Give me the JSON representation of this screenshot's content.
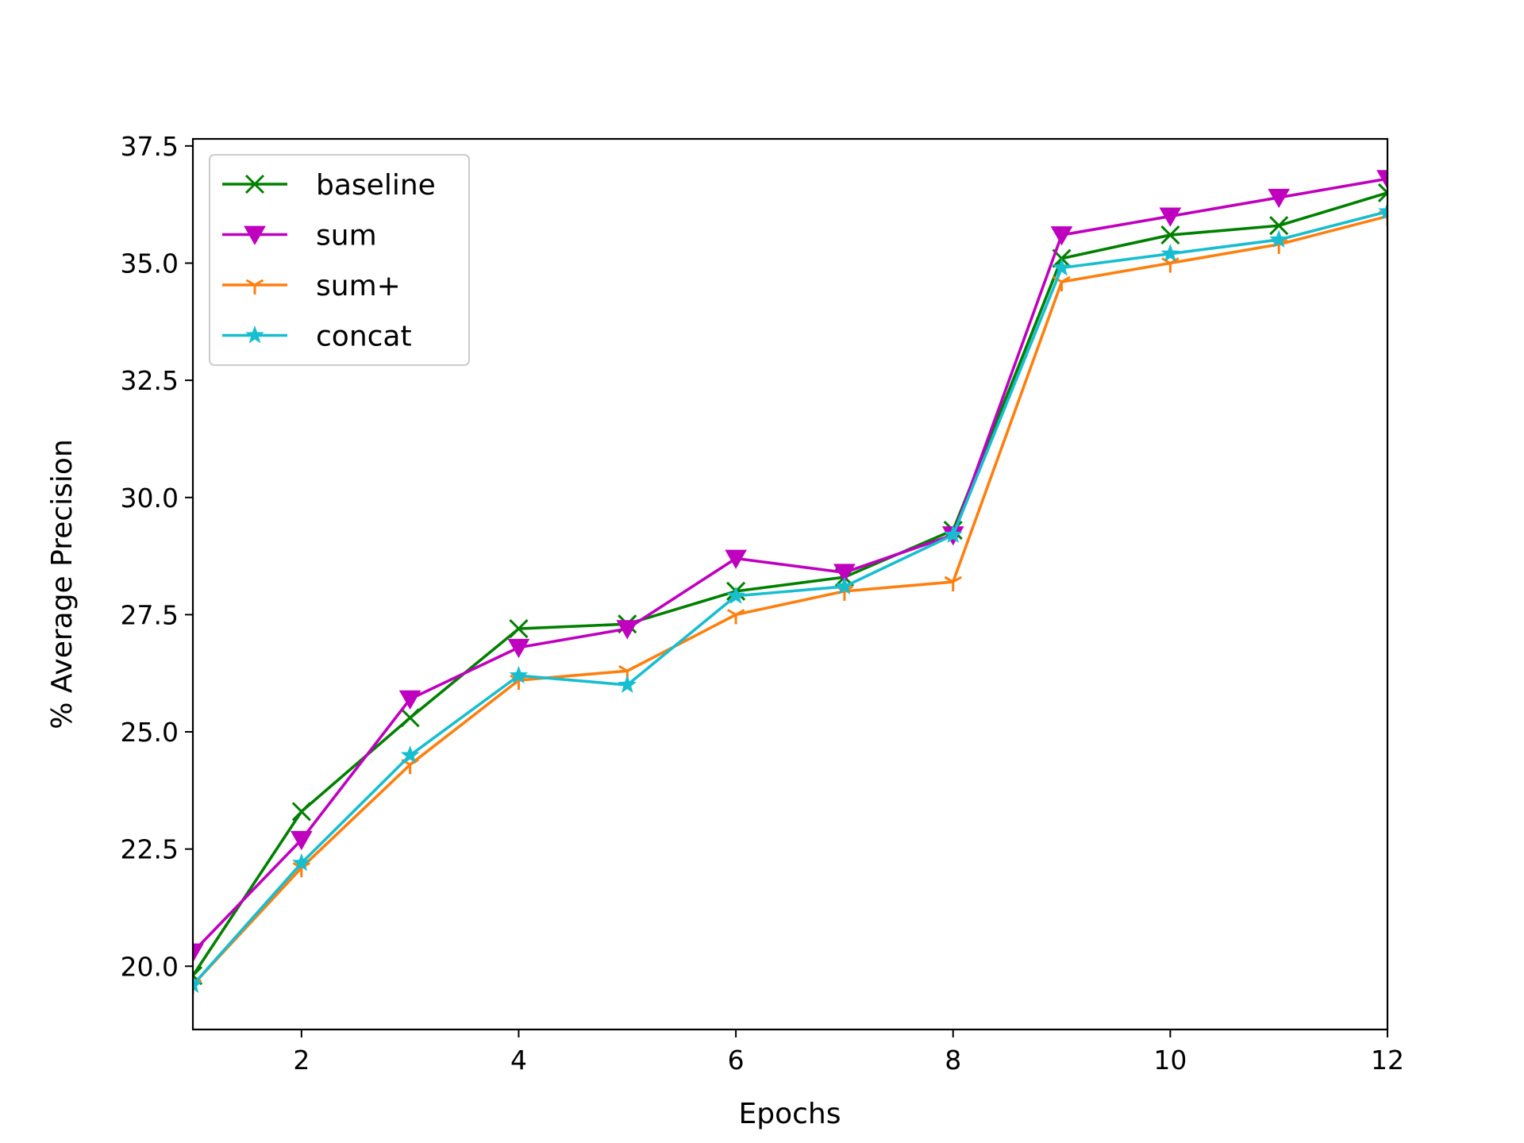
{
  "chart_data": {
    "type": "line",
    "title": "",
    "xlabel": "Epochs",
    "ylabel": "% Average Precision",
    "xlim": [
      1,
      12
    ],
    "ylim": [
      18.65,
      37.65
    ],
    "x_ticks": [
      2,
      4,
      6,
      8,
      10,
      12
    ],
    "x_tick_labels": [
      "2",
      "4",
      "6",
      "8",
      "10",
      "12"
    ],
    "y_ticks": [
      20.0,
      22.5,
      25.0,
      27.5,
      30.0,
      32.5,
      35.0,
      37.5
    ],
    "y_tick_labels": [
      "20.0",
      "22.5",
      "25.0",
      "27.5",
      "30.0",
      "32.5",
      "35.0",
      "37.5"
    ],
    "grid": false,
    "legend_position": "upper-left",
    "x": [
      1,
      2,
      3,
      4,
      5,
      6,
      7,
      8,
      9,
      10,
      11,
      12
    ],
    "series": [
      {
        "name": "baseline",
        "color": "#008000",
        "marker": "x",
        "values": [
          19.8,
          23.3,
          25.3,
          27.2,
          27.3,
          28.0,
          28.3,
          29.3,
          35.1,
          35.6,
          35.8,
          36.5
        ]
      },
      {
        "name": "sum",
        "color": "#bf00bf",
        "marker": "triangle-down",
        "values": [
          20.3,
          22.7,
          25.7,
          26.8,
          27.2,
          28.7,
          28.4,
          29.2,
          35.6,
          36.0,
          36.4,
          36.8
        ]
      },
      {
        "name": "sum+",
        "color": "#ff7f0e",
        "marker": "tri-down",
        "values": [
          19.6,
          22.1,
          24.3,
          26.1,
          26.3,
          27.5,
          28.0,
          28.2,
          34.6,
          35.0,
          35.4,
          36.0
        ]
      },
      {
        "name": "concat",
        "color": "#17becf",
        "marker": "star",
        "values": [
          19.6,
          22.2,
          24.5,
          26.2,
          26.0,
          27.9,
          28.1,
          29.2,
          34.9,
          35.2,
          35.5,
          36.1
        ]
      }
    ]
  }
}
